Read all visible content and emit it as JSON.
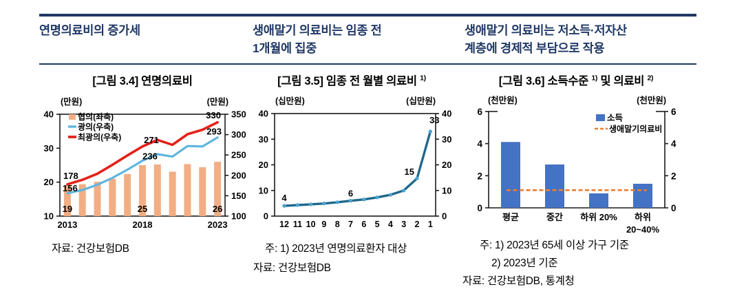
{
  "accent_navy": "#1F3864",
  "columns": [
    {
      "header_line1": "연명의료비의 증가세",
      "header_line2": "",
      "title_pre": "[그림 3.4] 연명의료비",
      "title_sup1": "",
      "title_mid": "",
      "title_sup2": "",
      "note1": "",
      "note2": "",
      "source": "자료: 건강보험DB"
    },
    {
      "header_line1": "생애말기 의료비는 임종 전",
      "header_line2": "1개월에 집중",
      "title_pre": "[그림 3.5] 임종 전 월별 의료비",
      "title_sup1": "1)",
      "title_mid": "",
      "title_sup2": "",
      "note1": "주: 1) 2023년 연명의료환자 대상",
      "note2": "",
      "source": "자료: 건강보험DB"
    },
    {
      "header_line1": "생애말기 의료비는 저소득·저자산",
      "header_line2": "계층에 경제적 부담으로 작용",
      "title_pre": "[그림 3.6] 소득수준",
      "title_sup1": "1)",
      "title_mid": " 및 의료비",
      "title_sup2": "2)",
      "note1": "주: 1) 2023년 65세 이상 가구 기준",
      "note2": "2) 2023년 기준",
      "source": "자료: 건강보험DB, 통계청"
    }
  ],
  "chart_data": [
    {
      "type": "combo-bar-line-dual-axis",
      "title": "[그림 3.4] 연명의료비",
      "unit_left": "(만원)",
      "unit_right": "(만원)",
      "x": [
        2013,
        2014,
        2015,
        2016,
        2017,
        2018,
        2019,
        2020,
        2021,
        2022,
        2023
      ],
      "x_ticks": [
        {
          "i": 0,
          "label": "2013"
        },
        {
          "i": 5,
          "label": "2018"
        },
        {
          "i": 10,
          "label": "2023"
        }
      ],
      "left_axis": {
        "min": 10,
        "max": 40,
        "ticks": [
          40,
          30,
          20,
          10
        ]
      },
      "right_axis": {
        "min": 100,
        "max": 350,
        "ticks": [
          350,
          300,
          250,
          200,
          150,
          100
        ]
      },
      "legend_position": "top-left-inside",
      "series": [
        {
          "name": "협의(좌축)",
          "type": "bar",
          "axis": "left",
          "color": "#F2AE84",
          "values": [
            19,
            19.4,
            20.1,
            21,
            22.4,
            25,
            25.2,
            23.1,
            25.3,
            24.4,
            26
          ],
          "labels": [
            {
              "i": 0,
              "text": "19"
            },
            {
              "i": 5,
              "text": "25"
            },
            {
              "i": 10,
              "text": "26"
            }
          ]
        },
        {
          "name": "광의(우축)",
          "type": "line",
          "axis": "right",
          "color": "#5FB5E0",
          "values": [
            156,
            164,
            177,
            194,
            214,
            236,
            252,
            246,
            272,
            271,
            293
          ],
          "labels": [
            {
              "i": 0,
              "text": "156"
            },
            {
              "i": 5,
              "text": "236"
            },
            {
              "i": 10,
              "text": "293"
            }
          ]
        },
        {
          "name": "최광의(우축)",
          "type": "line",
          "axis": "right",
          "color": "#E32119",
          "values": [
            178,
            189,
            204,
            226,
            249,
            271,
            287,
            275,
            301,
            312,
            330
          ],
          "labels": [
            {
              "i": 0,
              "text": "178"
            },
            {
              "i": 5,
              "text": "271"
            },
            {
              "i": 10,
              "text": "330"
            }
          ]
        }
      ]
    },
    {
      "type": "line",
      "title": "[그림 3.5] 임종 전 월별 의료비 1)",
      "unit_left": "(십만원)",
      "unit_right": "(십만원)",
      "categories": [
        "12",
        "11",
        "10",
        "9",
        "8",
        "7",
        "6",
        "5",
        "4",
        "3",
        "2",
        "1"
      ],
      "axis": {
        "min": 0,
        "max": 40,
        "ticks": [
          40,
          30,
          20,
          10,
          0
        ]
      },
      "series": [
        {
          "color": "#20688C",
          "marker_color": "#4BA3CE",
          "values": [
            4,
            4.3,
            4.6,
            4.9,
            5.4,
            6,
            6.5,
            7.3,
            8.3,
            10,
            14.7,
            33
          ]
        }
      ],
      "point_labels": [
        {
          "i": 0,
          "text": "4"
        },
        {
          "i": 5,
          "text": "6"
        },
        {
          "i": 10,
          "text": "15"
        },
        {
          "i": 11,
          "text": "33"
        }
      ]
    },
    {
      "type": "bar-with-dashed-refline",
      "title": "[그림 3.6] 소득수준 1) 및 의료비 2)",
      "unit_left": "(천만원)",
      "unit_right": "(천만원)",
      "categories": [
        "평균",
        "중간",
        "하위 20%",
        "하위\n20~40%"
      ],
      "axis": {
        "min": 0,
        "max": 6,
        "ticks": [
          6,
          4,
          2,
          0
        ]
      },
      "legend_position": "top-right-inside",
      "bar_series": {
        "name": "소득",
        "color": "#4472C4",
        "values": [
          4.1,
          2.7,
          0.9,
          1.5
        ]
      },
      "ref_line": {
        "name": "생애말기의료비",
        "color": "#ED7D31",
        "value": 1.1,
        "style": "dashed"
      }
    }
  ]
}
